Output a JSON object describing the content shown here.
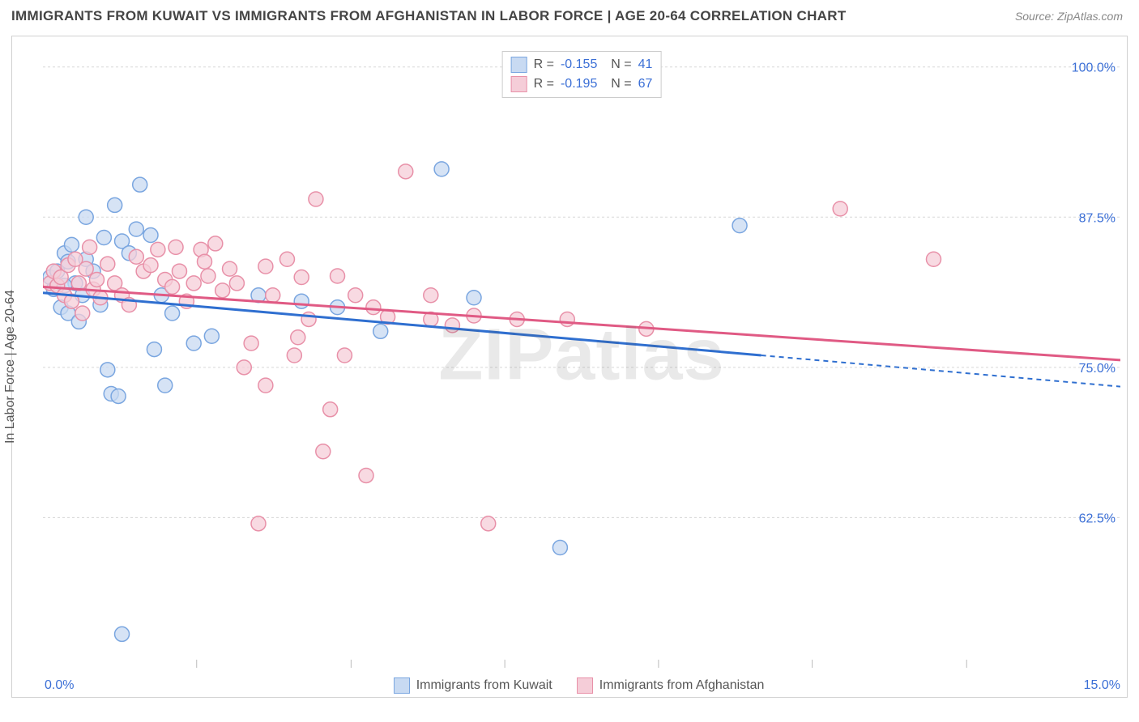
{
  "title": "IMMIGRANTS FROM KUWAIT VS IMMIGRANTS FROM AFGHANISTAN IN LABOR FORCE | AGE 20-64 CORRELATION CHART",
  "source": "Source: ZipAtlas.com",
  "watermark": "ZIPatlas",
  "ylabel": "In Labor Force | Age 20-64",
  "chart": {
    "type": "scatter",
    "xlim": [
      0,
      15
    ],
    "ylim": [
      50,
      102
    ],
    "xticks": [
      0,
      15
    ],
    "xtick_labels": [
      "0.0%",
      "15.0%"
    ],
    "x_minor_lines": [
      2.14,
      4.29,
      6.43,
      8.57,
      10.71,
      12.86
    ],
    "ytick_lines": [
      62.5,
      75.0,
      87.5,
      100.0
    ],
    "ytick_labels": [
      "62.5%",
      "75.0%",
      "87.5%",
      "100.0%"
    ],
    "axis_label_color": "#3b6fd6",
    "grid_color": "#d8d8d8",
    "background_color": "#ffffff",
    "series": [
      {
        "name": "Immigrants from Kuwait",
        "key": "kuwait",
        "fill": "#c8daf2",
        "stroke": "#7aa6e0",
        "line_color": "#2f6fd0",
        "R": "-0.155",
        "N": "41",
        "trend": {
          "x1": 0,
          "y1": 81.2,
          "x2": 10,
          "y2": 76.0,
          "dash_x2": 15,
          "dash_y2": 73.4
        },
        "points": [
          [
            0.1,
            82.5
          ],
          [
            0.15,
            81.5
          ],
          [
            0.2,
            83.0
          ],
          [
            0.25,
            80.0
          ],
          [
            0.3,
            84.5
          ],
          [
            0.35,
            79.5
          ],
          [
            0.4,
            85.2
          ],
          [
            0.45,
            82.0
          ],
          [
            0.5,
            78.8
          ],
          [
            0.55,
            81.0
          ],
          [
            0.6,
            84.0
          ],
          [
            0.7,
            83.0
          ],
          [
            0.8,
            80.2
          ],
          [
            0.9,
            74.8
          ],
          [
            0.95,
            72.8
          ],
          [
            1.0,
            88.5
          ],
          [
            1.05,
            72.6
          ],
          [
            1.1,
            85.5
          ],
          [
            1.2,
            84.5
          ],
          [
            1.3,
            86.5
          ],
          [
            1.35,
            90.2
          ],
          [
            1.5,
            86.0
          ],
          [
            1.65,
            81.0
          ],
          [
            1.55,
            76.5
          ],
          [
            1.7,
            73.5
          ],
          [
            1.8,
            79.5
          ],
          [
            1.1,
            52.8
          ],
          [
            0.6,
            87.5
          ],
          [
            0.85,
            85.8
          ],
          [
            2.1,
            77.0
          ],
          [
            2.35,
            77.6
          ],
          [
            3.0,
            81.0
          ],
          [
            3.6,
            80.5
          ],
          [
            4.1,
            80.0
          ],
          [
            4.7,
            78.0
          ],
          [
            5.55,
            91.5
          ],
          [
            6.0,
            80.8
          ],
          [
            7.2,
            60.0
          ],
          [
            9.7,
            86.8
          ],
          [
            0.3,
            81.8
          ],
          [
            0.35,
            83.8
          ]
        ]
      },
      {
        "name": "Immigrants from Afghanistan",
        "key": "afghan",
        "fill": "#f5cdd8",
        "stroke": "#e890a8",
        "line_color": "#e05a84",
        "R": "-0.195",
        "N": "67",
        "trend": {
          "x1": 0,
          "y1": 81.7,
          "x2": 15,
          "y2": 75.6
        },
        "points": [
          [
            0.1,
            82.0
          ],
          [
            0.15,
            83.0
          ],
          [
            0.2,
            81.8
          ],
          [
            0.25,
            82.5
          ],
          [
            0.3,
            81.0
          ],
          [
            0.35,
            83.5
          ],
          [
            0.4,
            80.5
          ],
          [
            0.45,
            84.0
          ],
          [
            0.5,
            82.0
          ],
          [
            0.55,
            79.5
          ],
          [
            0.6,
            83.2
          ],
          [
            0.65,
            85.0
          ],
          [
            0.7,
            81.5
          ],
          [
            0.75,
            82.3
          ],
          [
            0.8,
            80.8
          ],
          [
            0.9,
            83.6
          ],
          [
            1.0,
            82.0
          ],
          [
            1.1,
            81.0
          ],
          [
            1.2,
            80.2
          ],
          [
            1.3,
            84.2
          ],
          [
            1.4,
            83.0
          ],
          [
            1.5,
            83.5
          ],
          [
            1.6,
            84.8
          ],
          [
            1.7,
            82.3
          ],
          [
            1.8,
            81.7
          ],
          [
            1.85,
            85.0
          ],
          [
            1.9,
            83.0
          ],
          [
            2.0,
            80.5
          ],
          [
            2.1,
            82.0
          ],
          [
            2.2,
            84.8
          ],
          [
            2.25,
            83.8
          ],
          [
            2.3,
            82.6
          ],
          [
            2.5,
            81.4
          ],
          [
            2.6,
            83.2
          ],
          [
            2.7,
            82.0
          ],
          [
            2.4,
            85.3
          ],
          [
            2.8,
            75.0
          ],
          [
            2.9,
            77.0
          ],
          [
            3.1,
            83.4
          ],
          [
            3.1,
            73.5
          ],
          [
            3.2,
            81.0
          ],
          [
            3.4,
            84.0
          ],
          [
            3.5,
            76.0
          ],
          [
            3.55,
            77.5
          ],
          [
            3.6,
            82.5
          ],
          [
            3.7,
            79.0
          ],
          [
            3.8,
            89.0
          ],
          [
            3.9,
            68.0
          ],
          [
            4.0,
            71.5
          ],
          [
            4.1,
            82.6
          ],
          [
            4.2,
            76.0
          ],
          [
            4.35,
            81.0
          ],
          [
            4.5,
            66.0
          ],
          [
            4.6,
            80.0
          ],
          [
            4.8,
            79.2
          ],
          [
            5.05,
            91.3
          ],
          [
            5.4,
            81.0
          ],
          [
            5.4,
            79.0
          ],
          [
            5.7,
            78.5
          ],
          [
            6.0,
            79.3
          ],
          [
            6.2,
            62.0
          ],
          [
            6.6,
            79.0
          ],
          [
            7.3,
            79.0
          ],
          [
            8.4,
            78.2
          ],
          [
            11.1,
            88.2
          ],
          [
            12.4,
            84.0
          ],
          [
            3.0,
            62.0
          ]
        ]
      }
    ]
  }
}
